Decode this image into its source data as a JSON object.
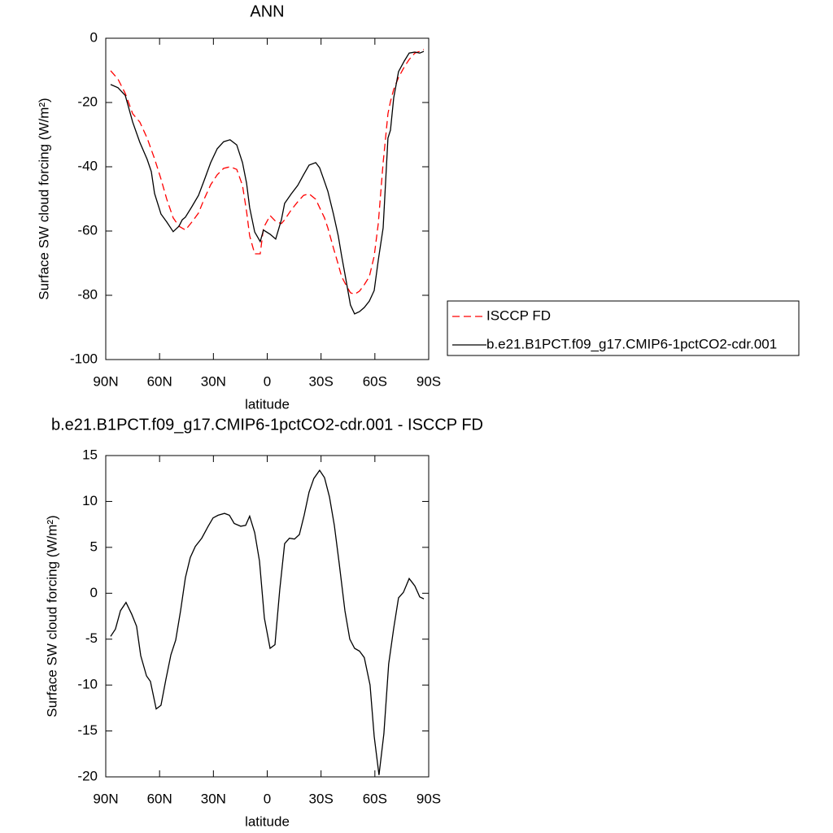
{
  "chart_data": [
    {
      "type": "line",
      "title": "ANN",
      "xlabel": "latitude",
      "ylabel": "Surface SW cloud forcing (W/m²)",
      "xlim": [
        90,
        -90
      ],
      "ylim": [
        -100,
        0
      ],
      "xticks": [
        {
          "value": 90,
          "label": "90N"
        },
        {
          "value": 60,
          "label": "60N"
        },
        {
          "value": 30,
          "label": "30N"
        },
        0,
        {
          "value": -30,
          "label": "30S"
        },
        {
          "value": -60,
          "label": "60S"
        },
        {
          "value": -90,
          "label": "90S"
        }
      ],
      "yticks": [
        0,
        -20,
        -40,
        -60,
        -80,
        -100
      ],
      "legend": "right",
      "x": [
        87.3,
        83.2,
        79.1,
        75.0,
        71.0,
        66.9,
        64.6,
        62.8,
        59.2,
        56.0,
        52.4,
        49.2,
        47.4,
        45.6,
        42.0,
        38.3,
        35.2,
        31.5,
        27.9,
        24.3,
        20.7,
        17.0,
        13.8,
        11.5,
        9.8,
        7.0,
        3.9,
        2.1,
        -1.6,
        -4.7,
        -7.9,
        -9.7,
        -13.4,
        -17.0,
        -20.2,
        -23.3,
        -27.0,
        -29.2,
        -31.9,
        -33.8,
        -36.9,
        -39.6,
        -41.5,
        -43.8,
        -46.4,
        -48.7,
        -51.4,
        -54.1,
        -56.9,
        -59.6,
        -61.9,
        -64.6,
        -67.3,
        -68.7,
        -70.5,
        -73.2,
        -76.4,
        -79.1,
        -82.3,
        -85.0,
        -87.3
      ],
      "series": [
        {
          "name": "ISCCP FD",
          "color": "#ff0000",
          "dashed": true,
          "values": [
            -10.1,
            -12.7,
            -17.2,
            -23.5,
            -26.1,
            -31.1,
            -34.7,
            -37.5,
            -43.8,
            -50.1,
            -55.9,
            -58.5,
            -59.1,
            -59.7,
            -57.2,
            -54.4,
            -50.1,
            -45.6,
            -42.5,
            -40.5,
            -40.0,
            -40.8,
            -45.8,
            -53.9,
            -61.5,
            -67.1,
            -67.1,
            -59.0,
            -55.2,
            -57.0,
            -57.7,
            -56.5,
            -53.4,
            -50.9,
            -48.9,
            -48.4,
            -50.1,
            -52.7,
            -55.9,
            -59.0,
            -65.3,
            -70.4,
            -74.2,
            -76.7,
            -79.2,
            -79.7,
            -78.7,
            -76.7,
            -74.2,
            -67.8,
            -57.7,
            -38.7,
            -23.5,
            -19.7,
            -15.9,
            -12.2,
            -8.9,
            -6.6,
            -4.6,
            -4.1,
            -3.5
          ]
        },
        {
          "name": "b.e21.B1PCT.f09_g17.CMIP6-1pctCO2-cdr.001",
          "color": "#000000",
          "dashed": false,
          "values": [
            -14.4,
            -15.4,
            -17.8,
            -26.1,
            -32.4,
            -37.7,
            -41.5,
            -48.3,
            -54.7,
            -57.2,
            -60.2,
            -58.5,
            -56.5,
            -55.7,
            -52.4,
            -48.9,
            -44.3,
            -38.7,
            -34.4,
            -32.2,
            -31.6,
            -33.2,
            -38.7,
            -45.1,
            -52.7,
            -60.3,
            -63.3,
            -59.7,
            -61.0,
            -62.5,
            -56.5,
            -51.4,
            -48.4,
            -45.8,
            -42.5,
            -39.5,
            -38.7,
            -40.3,
            -44.6,
            -47.6,
            -54.7,
            -61.5,
            -67.8,
            -74.9,
            -83.0,
            -85.8,
            -85.1,
            -83.8,
            -81.8,
            -78.5,
            -69.1,
            -59.0,
            -31.1,
            -28.6,
            -18.5,
            -10.4,
            -7.1,
            -4.6,
            -4.3,
            -4.6,
            -4.1
          ]
        }
      ]
    },
    {
      "type": "line",
      "title": "b.e21.B1PCT.f09_g17.CMIP6-1pctCO2-cdr.001 - ISCCP FD",
      "xlabel": "latitude",
      "ylabel": "Surface SW cloud forcing (W/m²)",
      "xlim": [
        90,
        -90
      ],
      "ylim": [
        -20,
        15
      ],
      "xticks": [
        {
          "value": 90,
          "label": "90N"
        },
        {
          "value": 60,
          "label": "60N"
        },
        {
          "value": 30,
          "label": "30N"
        },
        0,
        {
          "value": -30,
          "label": "30S"
        },
        {
          "value": -60,
          "label": "60S"
        },
        {
          "value": -90,
          "label": "90S"
        }
      ],
      "yticks": [
        15,
        10,
        5,
        0,
        -5,
        -10,
        -15,
        -20
      ],
      "x": [
        87.3,
        84.6,
        81.8,
        78.7,
        75.5,
        72.8,
        70.5,
        67.3,
        65.1,
        61.9,
        59.2,
        56.5,
        53.7,
        51.0,
        48.3,
        45.6,
        42.9,
        40.1,
        36.5,
        32.9,
        30.2,
        27.4,
        23.8,
        21.1,
        18.4,
        14.8,
        12.0,
        9.8,
        7.0,
        4.3,
        1.6,
        -1.6,
        -4.3,
        -7.0,
        -9.7,
        -12.4,
        -15.2,
        -17.9,
        -20.6,
        -23.3,
        -26.0,
        -29.2,
        -31.9,
        -34.7,
        -37.4,
        -40.1,
        -43.3,
        -46.0,
        -48.7,
        -51.4,
        -54.1,
        -57.3,
        -59.6,
        -62.3,
        -65.0,
        -67.7,
        -70.5,
        -73.2,
        -75.9,
        -79.1,
        -82.3,
        -85.0,
        -87.3
      ],
      "series": [
        {
          "color": "#000000",
          "dashed": false,
          "values": [
            -4.7,
            -3.9,
            -1.9,
            -1.0,
            -2.3,
            -3.6,
            -6.8,
            -9.0,
            -9.6,
            -12.6,
            -12.2,
            -9.4,
            -6.7,
            -5.1,
            -1.9,
            1.7,
            3.9,
            5.1,
            6.0,
            7.3,
            8.2,
            8.5,
            8.7,
            8.5,
            7.6,
            7.3,
            7.4,
            8.4,
            6.6,
            3.5,
            -2.7,
            -6.0,
            -5.6,
            0.4,
            5.4,
            6.0,
            5.9,
            6.4,
            8.5,
            11.0,
            12.5,
            13.4,
            12.6,
            10.5,
            7.4,
            3.3,
            -1.9,
            -5.0,
            -6.0,
            -6.3,
            -7.0,
            -10.0,
            -15.6,
            -19.8,
            -15.3,
            -7.7,
            -3.8,
            -0.5,
            0.1,
            1.6,
            0.8,
            -0.4,
            -0.6
          ]
        }
      ]
    }
  ]
}
